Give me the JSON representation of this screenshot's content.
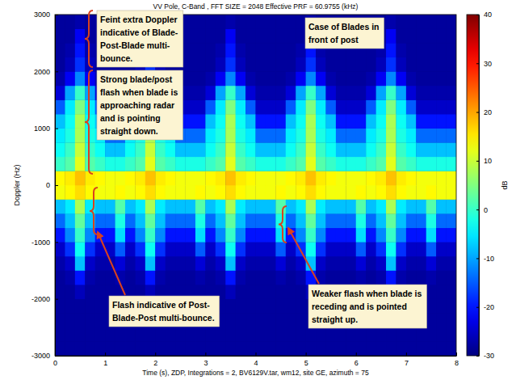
{
  "chart_data": {
    "type": "heatmap",
    "title": "VV Pole, C-Band , FFT SIZE = 2048 Effective PRF = 60.9755 (kHz)",
    "x_label": "Time (s), ZDP, Integrations = 2, BV6129V.tar, wm12, site GE, azimuth = 75",
    "y_label": "Doppler (Hz)",
    "xlim": [
      0,
      8
    ],
    "xticks": [
      0,
      1,
      2,
      3,
      4,
      5,
      6,
      7,
      8
    ],
    "ylim": [
      -3000,
      3000
    ],
    "yticks": [
      -3000,
      -2000,
      -1000,
      0,
      1000,
      2000,
      3000
    ],
    "x_bins": [
      0,
      0.2,
      0.4,
      0.6,
      0.8,
      1,
      1.2,
      1.4,
      1.6,
      1.8,
      2,
      2.2,
      2.4,
      2.6,
      2.8,
      3,
      3.2,
      3.4,
      3.6,
      3.8,
      4,
      4.2,
      4.4,
      4.6,
      4.8,
      5,
      5.2,
      5.4,
      5.6,
      5.8,
      6,
      6.2,
      6.4,
      6.6,
      6.8,
      7,
      7.2,
      7.4,
      7.6,
      7.8,
      8
    ],
    "y_bins": [
      -3000,
      -2750,
      -2500,
      -2250,
      -2000,
      -1750,
      -1500,
      -1250,
      -1000,
      -750,
      -500,
      -250,
      0,
      250,
      500,
      750,
      1000,
      1250,
      1500,
      1750,
      2000,
      2250,
      2500,
      2750,
      3000
    ],
    "cells": [
      [
        -28,
        -28,
        -28,
        -28,
        -28,
        -28,
        -28,
        -28,
        -28,
        -28,
        -28,
        -28,
        -28,
        -28,
        -28,
        -28,
        -28,
        -28,
        -28,
        -28,
        -28,
        -28,
        -28,
        -28,
        -28,
        -28,
        -28,
        -28,
        -28,
        -28,
        -28,
        -28,
        -28,
        -28,
        -28,
        -28,
        -28,
        -28,
        -28,
        -28
      ],
      [
        -28,
        -28,
        -28,
        -28,
        -28,
        -28,
        -28,
        -28,
        -28,
        -28,
        -28,
        -28,
        -28,
        -28,
        -28,
        -28,
        -28,
        -28,
        -28,
        -28,
        -28,
        -28,
        -28,
        -28,
        -28,
        -28,
        -28,
        -28,
        -28,
        -28,
        -28,
        -28,
        -28,
        -28,
        -28,
        -28,
        -28,
        -28,
        -28,
        -28
      ],
      [
        -28,
        -28,
        -28,
        -28,
        -28,
        -28,
        -28,
        -28,
        -28,
        -28,
        -28,
        -28,
        -28,
        -28,
        -28,
        -28,
        -28,
        -28,
        -28,
        -28,
        -28,
        -28,
        -28,
        -28,
        -28,
        -28,
        -28,
        -28,
        -28,
        -28,
        -28,
        -28,
        -28,
        -28,
        -28,
        -28,
        -28,
        -28,
        -28,
        -28
      ],
      [
        -28,
        -28,
        -28,
        -28,
        -28,
        -28,
        -28,
        -28,
        -28,
        -28,
        -28,
        -28,
        -28,
        -28,
        -28,
        -28,
        -28,
        -28,
        -28,
        -28,
        -28,
        -28,
        -28,
        -28,
        -28,
        -28,
        -28,
        -28,
        -28,
        -28,
        -28,
        -28,
        -28,
        -28,
        -28,
        -28,
        -28,
        -28,
        -28,
        -28
      ],
      [
        -28,
        -28,
        -26,
        -28,
        -28,
        -28,
        -28,
        -28,
        -28,
        -26,
        -28,
        -28,
        -28,
        -28,
        -28,
        -28,
        -28,
        -26,
        -28,
        -28,
        -28,
        -28,
        -28,
        -28,
        -28,
        -26,
        -28,
        -28,
        -28,
        -28,
        -28,
        -28,
        -28,
        -26,
        -28,
        -28,
        -28,
        -28,
        -28,
        -28
      ],
      [
        -28,
        -27,
        -20,
        -27,
        -28,
        -28,
        -27,
        -28,
        -27,
        -20,
        -27,
        -28,
        -28,
        -28,
        -27,
        -28,
        -27,
        -20,
        -27,
        -28,
        -28,
        -28,
        -27,
        -28,
        -27,
        -20,
        -27,
        -28,
        -28,
        -28,
        -27,
        -28,
        -27,
        -20,
        -27,
        -28,
        -28,
        -27,
        -28,
        -28
      ],
      [
        -27,
        -25,
        -8,
        -25,
        -27,
        -27,
        -24,
        -27,
        -25,
        -8,
        -25,
        -27,
        -27,
        -27,
        -24,
        -27,
        -25,
        -8,
        -25,
        -27,
        -27,
        -27,
        -24,
        -27,
        -25,
        -8,
        -25,
        -27,
        -27,
        -27,
        -24,
        -27,
        -25,
        -8,
        -25,
        -27,
        -27,
        -24,
        -27,
        -27
      ],
      [
        -25,
        -18,
        -3,
        -18,
        -25,
        -25,
        -15,
        -25,
        -18,
        -3,
        -18,
        -25,
        -25,
        -25,
        -15,
        -25,
        -18,
        -3,
        -18,
        -25,
        -25,
        -25,
        -15,
        -25,
        -18,
        -3,
        -18,
        -25,
        -25,
        -25,
        -15,
        -25,
        -18,
        -3,
        -18,
        -25,
        -25,
        -15,
        -25,
        -25
      ],
      [
        -20,
        -12,
        0,
        -12,
        -20,
        -20,
        -6,
        -20,
        -12,
        0,
        -12,
        -20,
        -20,
        -20,
        -6,
        -20,
        -12,
        0,
        -12,
        -20,
        -20,
        -20,
        -6,
        -20,
        -12,
        0,
        -12,
        -20,
        -20,
        -20,
        -6,
        -20,
        -12,
        0,
        -12,
        -20,
        -20,
        -6,
        -20,
        -20
      ],
      [
        -14,
        -8,
        3,
        -8,
        -14,
        -14,
        -2,
        -14,
        -8,
        3,
        -8,
        -14,
        -14,
        -14,
        -2,
        -14,
        -8,
        3,
        -8,
        -14,
        -14,
        -14,
        -2,
        -14,
        -8,
        3,
        -8,
        -14,
        -14,
        -14,
        -2,
        -14,
        -8,
        3,
        -8,
        -14,
        -14,
        -2,
        -14,
        -14
      ],
      [
        -8,
        -5,
        8,
        -5,
        -8,
        -8,
        2,
        -8,
        -5,
        8,
        -5,
        -8,
        -8,
        -8,
        2,
        -8,
        -5,
        8,
        -5,
        -8,
        -8,
        -8,
        2,
        -8,
        -5,
        8,
        -5,
        -8,
        -8,
        -8,
        2,
        -8,
        -5,
        8,
        -5,
        -8,
        -8,
        2,
        -8,
        -8
      ],
      [
        13,
        14,
        16,
        14,
        13,
        13,
        14,
        13,
        14,
        16,
        14,
        13,
        13,
        13,
        14,
        13,
        14,
        16,
        14,
        13,
        13,
        13,
        14,
        13,
        14,
        16,
        14,
        13,
        13,
        13,
        14,
        13,
        14,
        16,
        14,
        13,
        13,
        14,
        13,
        13
      ],
      [
        14,
        15,
        18,
        15,
        14,
        13,
        13,
        14,
        15,
        18,
        15,
        14,
        13,
        13,
        13,
        14,
        15,
        18,
        15,
        14,
        13,
        13,
        13,
        14,
        15,
        18,
        15,
        14,
        13,
        13,
        13,
        14,
        15,
        18,
        15,
        14,
        13,
        13,
        13,
        13
      ],
      [
        0,
        2,
        12,
        2,
        0,
        -2,
        -2,
        0,
        2,
        12,
        2,
        0,
        -2,
        -2,
        -2,
        0,
        2,
        12,
        2,
        0,
        -2,
        -2,
        -2,
        0,
        2,
        12,
        2,
        0,
        -2,
        -2,
        -2,
        0,
        2,
        12,
        2,
        0,
        -2,
        -2,
        -2,
        -2
      ],
      [
        -3,
        0,
        10,
        0,
        -3,
        -8,
        -8,
        -3,
        0,
        10,
        0,
        -3,
        -8,
        -8,
        -8,
        -3,
        0,
        10,
        0,
        -3,
        -8,
        -8,
        -8,
        -3,
        0,
        10,
        0,
        -3,
        -8,
        -8,
        -8,
        -3,
        0,
        10,
        0,
        -3,
        -8,
        -8,
        -8,
        -8
      ],
      [
        -5,
        -2,
        8,
        -2,
        -5,
        -14,
        -14,
        -5,
        -2,
        8,
        -2,
        -5,
        -14,
        -14,
        -14,
        -5,
        -2,
        8,
        -2,
        -5,
        -14,
        -14,
        -14,
        -5,
        -2,
        8,
        -2,
        -5,
        -14,
        -14,
        -14,
        -5,
        -2,
        8,
        -2,
        -5,
        -14,
        -14,
        -14,
        -14
      ],
      [
        -8,
        -3,
        8,
        -3,
        -8,
        -20,
        -20,
        -8,
        -3,
        8,
        -3,
        -8,
        -20,
        -20,
        -20,
        -8,
        -3,
        8,
        -3,
        -8,
        -20,
        -20,
        -20,
        -8,
        -3,
        8,
        -3,
        -8,
        -20,
        -20,
        -20,
        -8,
        -3,
        8,
        -3,
        -8,
        -20,
        -20,
        -20,
        -20
      ],
      [
        -15,
        -5,
        5,
        -5,
        -15,
        -25,
        -25,
        -15,
        -5,
        5,
        -5,
        -15,
        -25,
        -25,
        -25,
        -15,
        -5,
        5,
        -5,
        -15,
        -25,
        -25,
        -25,
        -15,
        -5,
        5,
        -5,
        -15,
        -25,
        -25,
        -25,
        -15,
        -5,
        5,
        -5,
        -15,
        -25,
        -25,
        -25,
        -25
      ],
      [
        -24,
        -10,
        0,
        -10,
        -24,
        -27,
        -27,
        -24,
        -10,
        0,
        -10,
        -24,
        -27,
        -27,
        -27,
        -24,
        -10,
        0,
        -10,
        -24,
        -27,
        -27,
        -27,
        -24,
        -10,
        0,
        -10,
        -24,
        -27,
        -27,
        -27,
        -24,
        -10,
        0,
        -10,
        -24,
        -27,
        -27,
        -27,
        -27
      ],
      [
        -27,
        -22,
        -12,
        -22,
        -27,
        -28,
        -28,
        -27,
        -22,
        -12,
        -22,
        -27,
        -28,
        -28,
        -28,
        -27,
        -22,
        -12,
        -22,
        -27,
        -28,
        -28,
        -28,
        -27,
        -22,
        -12,
        -22,
        -27,
        -28,
        -28,
        -28,
        -27,
        -22,
        -12,
        -22,
        -27,
        -28,
        -28,
        -28,
        -28
      ],
      [
        -28,
        -26,
        -18,
        -26,
        -28,
        -28,
        -28,
        -28,
        -26,
        -18,
        -26,
        -28,
        -28,
        -28,
        -28,
        -28,
        -26,
        -18,
        -26,
        -28,
        -28,
        -28,
        -28,
        -28,
        -26,
        -18,
        -26,
        -28,
        -28,
        -28,
        -28,
        -28,
        -26,
        -18,
        -26,
        -28,
        -28,
        -28,
        -28,
        -28
      ],
      [
        -28,
        -27,
        -20,
        -27,
        -28,
        -28,
        -28,
        -28,
        -27,
        -20,
        -27,
        -28,
        -28,
        -28,
        -28,
        -28,
        -27,
        -20,
        -27,
        -28,
        -28,
        -28,
        -28,
        -28,
        -27,
        -20,
        -27,
        -28,
        -28,
        -28,
        -28,
        -28,
        -27,
        -20,
        -27,
        -28,
        -28,
        -28,
        -28,
        -28
      ],
      [
        -28,
        -28,
        -22,
        -28,
        -28,
        -28,
        -28,
        -28,
        -28,
        -22,
        -28,
        -28,
        -28,
        -28,
        -28,
        -28,
        -28,
        -22,
        -28,
        -28,
        -28,
        -28,
        -28,
        -28,
        -28,
        -22,
        -28,
        -28,
        -28,
        -28,
        -28,
        -28,
        -28,
        -22,
        -28,
        -28,
        -28,
        -28,
        -28,
        -28
      ],
      [
        -28,
        -28,
        -27,
        -28,
        -28,
        -28,
        -28,
        -28,
        -28,
        -27,
        -28,
        -28,
        -28,
        -28,
        -28,
        -28,
        -28,
        -27,
        -28,
        -28,
        -28,
        -28,
        -28,
        -28,
        -28,
        -27,
        -28,
        -28,
        -28,
        -28,
        -28,
        -28,
        -28,
        -27,
        -28,
        -28,
        -28,
        -28,
        -28,
        -28
      ]
    ],
    "colorbar": {
      "label": "dB",
      "range": [
        -30,
        40
      ],
      "ticks": [
        -30,
        -20,
        -10,
        0,
        10,
        20,
        30,
        40
      ]
    },
    "annotations": [
      {
        "text": [
          "Feint extra Doppler",
          "indicative of Blade-",
          "Post-Blade multi-",
          "bounce."
        ]
      },
      {
        "text": [
          "Strong blade/post",
          "flash when blade is",
          "approaching radar",
          "and is pointing",
          "straight down."
        ]
      },
      {
        "text": [
          "Case of Blades in",
          "front of post"
        ]
      },
      {
        "text": [
          "Flash indicative of Post-",
          "Blade-Post multi-bounce."
        ]
      },
      {
        "text": [
          "Weaker flash when blade is",
          "receding and is pointed",
          "straight up."
        ]
      }
    ]
  }
}
